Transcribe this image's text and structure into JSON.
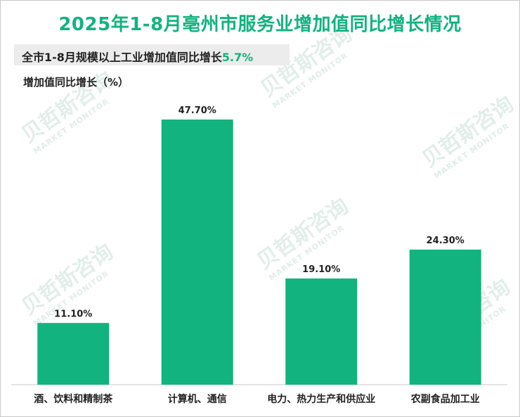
{
  "title": "2025年1-8月亳州市服务业增加值同比增长情况",
  "subtitle": {
    "prefix": "全市1-8月规模以上工业增加值同比增长",
    "value": "5.7%"
  },
  "watermark": {
    "cn": "贝哲斯咨询",
    "en": "MARKET MONITOR"
  },
  "colors": {
    "bar": "#12b37e",
    "title": "#12b37e",
    "axis": "#c8c8c8"
  },
  "chart_data": {
    "type": "bar",
    "ylabel": "增加值同比增长（%）",
    "xlabel": "",
    "categories": [
      "酒、饮料和精制茶",
      "计算机、通信",
      "电力、热力生产和供应业",
      "农副食品加工业"
    ],
    "values": [
      11.1,
      47.7,
      19.1,
      24.3
    ],
    "data_labels": [
      "11.10%",
      "47.70%",
      "19.10%",
      "24.30%"
    ],
    "ylim": [
      0,
      50
    ],
    "grid": false,
    "legend": "none"
  }
}
